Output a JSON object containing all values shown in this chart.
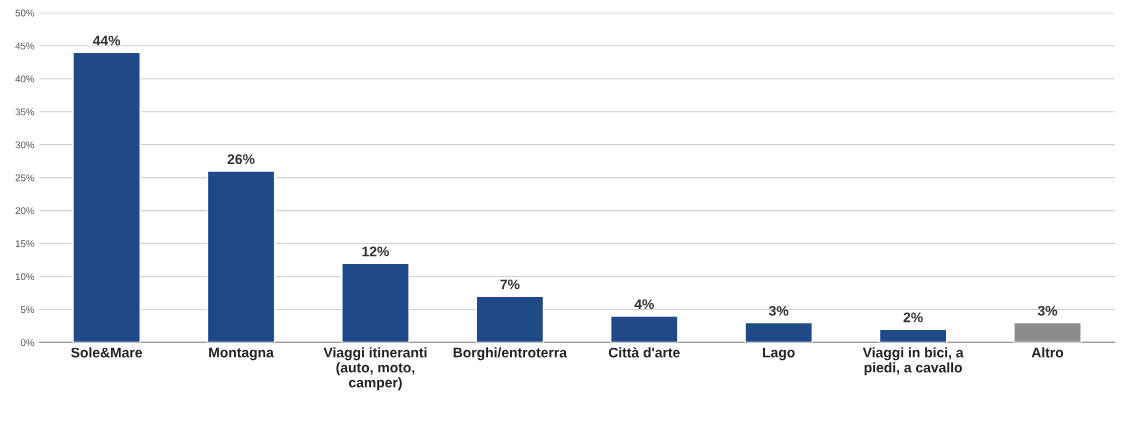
{
  "chart_data": {
    "type": "bar",
    "categories": [
      "Sole&Mare",
      "Montagna",
      "Viaggi itineranti\n(auto, moto,\ncamper)",
      "Borghi/entroterra",
      "Città d'arte",
      "Lago",
      "Viaggi in bici, a\npiedi, a cavallo",
      "Altro"
    ],
    "values": [
      44,
      26,
      12,
      7,
      4,
      3,
      2,
      3
    ],
    "colors": [
      "#1f4a87",
      "#1f4a87",
      "#1f4a87",
      "#1f4a87",
      "#1f4a87",
      "#1f4a87",
      "#1f4a87",
      "#8c8c8c"
    ],
    "value_labels": [
      "44%",
      "26%",
      "12%",
      "7%",
      "4%",
      "3%",
      "2%",
      "3%"
    ],
    "ylim": [
      0,
      50
    ],
    "yticks": [
      {
        "value": 0,
        "label": "0%"
      },
      {
        "value": 5,
        "label": "5%"
      },
      {
        "value": 10,
        "label": "10%"
      },
      {
        "value": 15,
        "label": "15%"
      },
      {
        "value": 20,
        "label": "20%"
      },
      {
        "value": 25,
        "label": "25%"
      },
      {
        "value": 30,
        "label": "30%"
      },
      {
        "value": 35,
        "label": "35%"
      },
      {
        "value": 40,
        "label": "40%"
      },
      {
        "value": 45,
        "label": "45%"
      },
      {
        "value": 50,
        "label": "50%"
      }
    ],
    "grid": "y"
  }
}
